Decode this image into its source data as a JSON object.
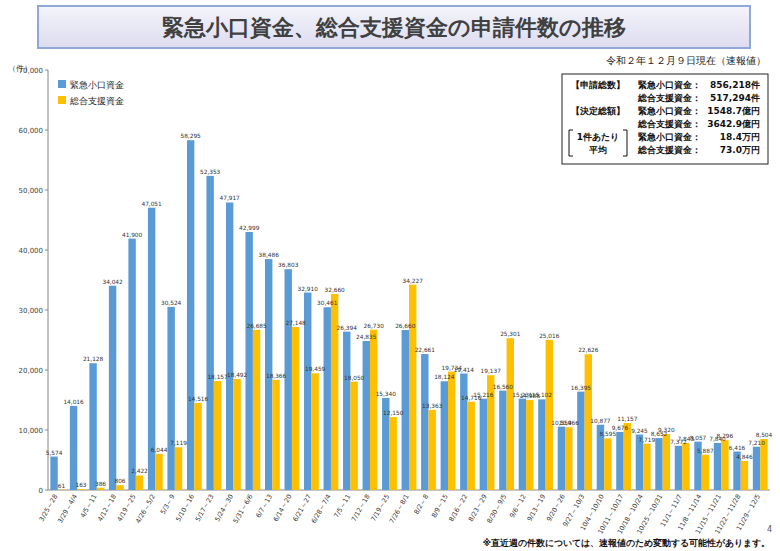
{
  "chart_data": {
    "type": "bar",
    "title": "緊急小口資金、総合支援資金の申請件数の推移",
    "subtitle": "令和２年１２月９日現在（速報値）",
    "ylabel": "（件）",
    "categories": [
      "3/25～28",
      "3/29～4/4",
      "4/5～11",
      "4/12～18",
      "4/19～25",
      "4/26～5/2",
      "5/3～9",
      "5/10～16",
      "5/17～23",
      "5/24～30",
      "5/31～6/6",
      "6/7～13",
      "6/14～20",
      "6/21～27",
      "6/28～7/4",
      "7/5～11",
      "7/12～18",
      "7/19～25",
      "7/26～8/1",
      "8/2～8",
      "8/9～15",
      "8/16～22",
      "8/23～29",
      "8/30～9/5",
      "9/6～12",
      "9/13～19",
      "9/20～26",
      "9/27～10/3",
      "10/4～10/10",
      "10/11～10/17",
      "10/18～10/24",
      "10/25～10/31",
      "11/1～11/7",
      "11/8～11/14",
      "11/15～11/21",
      "11/22～11/28",
      "11/29～12/5"
    ],
    "series": [
      {
        "name": "緊急小口資金",
        "color": "#5b9bd5",
        "values": [
          5574,
          14016,
          21128,
          34042,
          41900,
          47051,
          30524,
          58295,
          52353,
          47917,
          42999,
          38486,
          36803,
          32910,
          30461,
          26394,
          24835,
          15340,
          26660,
          22661,
          18124,
          19414,
          15216,
          16560,
          15231,
          15102,
          10559,
          16395,
          10877,
          9676,
          9245,
          8652,
          7372,
          8057,
          7840,
          6416,
          7210
        ],
        "value_labels": [
          "5,574",
          "14,016",
          "21,128",
          "34,042",
          "41,900",
          "47,051",
          "30,524",
          "58,295",
          "52,353",
          "47,917",
          "42,999",
          "38,486",
          "36,803",
          "32,910",
          "30,461",
          "26,394",
          "24,835",
          "15,340",
          "26,660",
          "22,661",
          "18,124",
          "19,414",
          "15,216",
          "16,560",
          "15,231",
          "15,102",
          "10,559",
          "16,395",
          "10,877",
          "9,676",
          "9,245",
          "8,652",
          "7,372",
          "8,057",
          "7,840",
          "6,416",
          "7,210"
        ]
      },
      {
        "name": "総合支援資金",
        "color": "#ffc000",
        "values": [
          61,
          163,
          386,
          806,
          2422,
          6044,
          7119,
          14516,
          18157,
          18492,
          26685,
          18366,
          27148,
          19459,
          32660,
          18050,
          26730,
          12150,
          34227,
          13363,
          19734,
          14716,
          19137,
          25301,
          14988,
          25016,
          10466,
          22626,
          8595,
          11157,
          7719,
          9320,
          7843,
          5887,
          8296,
          4846,
          8504
        ],
        "value_labels": [
          "61",
          "163",
          "386",
          "806",
          "2,422",
          "6,044",
          "7,119",
          "14,516",
          "18,157",
          "18,492",
          "26,685",
          "18,366",
          "27,148",
          "19,459",
          "32,660",
          "18,050",
          "26,730",
          "12,150",
          "34,227",
          "13,363",
          "19,734",
          "14,716",
          "19,137",
          "25,301",
          "14,988",
          "25,016",
          "10,466",
          "22,626",
          "8,595",
          "11,157",
          "7,719",
          "9,320",
          "7,843",
          "5,887",
          "8,296",
          "4,846",
          "8,504"
        ]
      }
    ],
    "ylim": [
      0,
      70000
    ],
    "yticks": [
      0,
      {
        "value": 10000,
        "label": "10,000"
      },
      {
        "value": 20000,
        "label": "20,000"
      },
      {
        "value": 30000,
        "label": "30,000"
      },
      {
        "value": 40000,
        "label": "40,000"
      },
      {
        "value": 50000,
        "label": "50,000"
      },
      {
        "value": 60000,
        "label": "60,000"
      },
      {
        "value": 70000,
        "label": "70,000"
      }
    ],
    "grid": false,
    "legend": "top-left",
    "data_labels": true,
    "info_box": [
      {
        "heading": [
          "【申請総数】"
        ],
        "items": [
          {
            "label": "緊急小口資金：",
            "value": "856,218件"
          },
          {
            "label": "総合支援資金：",
            "value": "517,294件"
          }
        ]
      },
      {
        "heading": [
          "【決定総額】"
        ],
        "items": [
          {
            "label": "緊急小口資金：",
            "value": "1548.7億円"
          },
          {
            "label": "総合支援資金：",
            "value": "3642.9億円"
          }
        ]
      },
      {
        "heading": [
          "1件あたり",
          "平均"
        ],
        "items": [
          {
            "label": "緊急小口資金：",
            "value": "18.4万円"
          },
          {
            "label": "総合支援資金：",
            "value": "73.0万円"
          }
        ]
      }
    ],
    "annotations": [
      "4",
      "※直近週の件数については、速報値のため変動する可能性があります。"
    ]
  }
}
